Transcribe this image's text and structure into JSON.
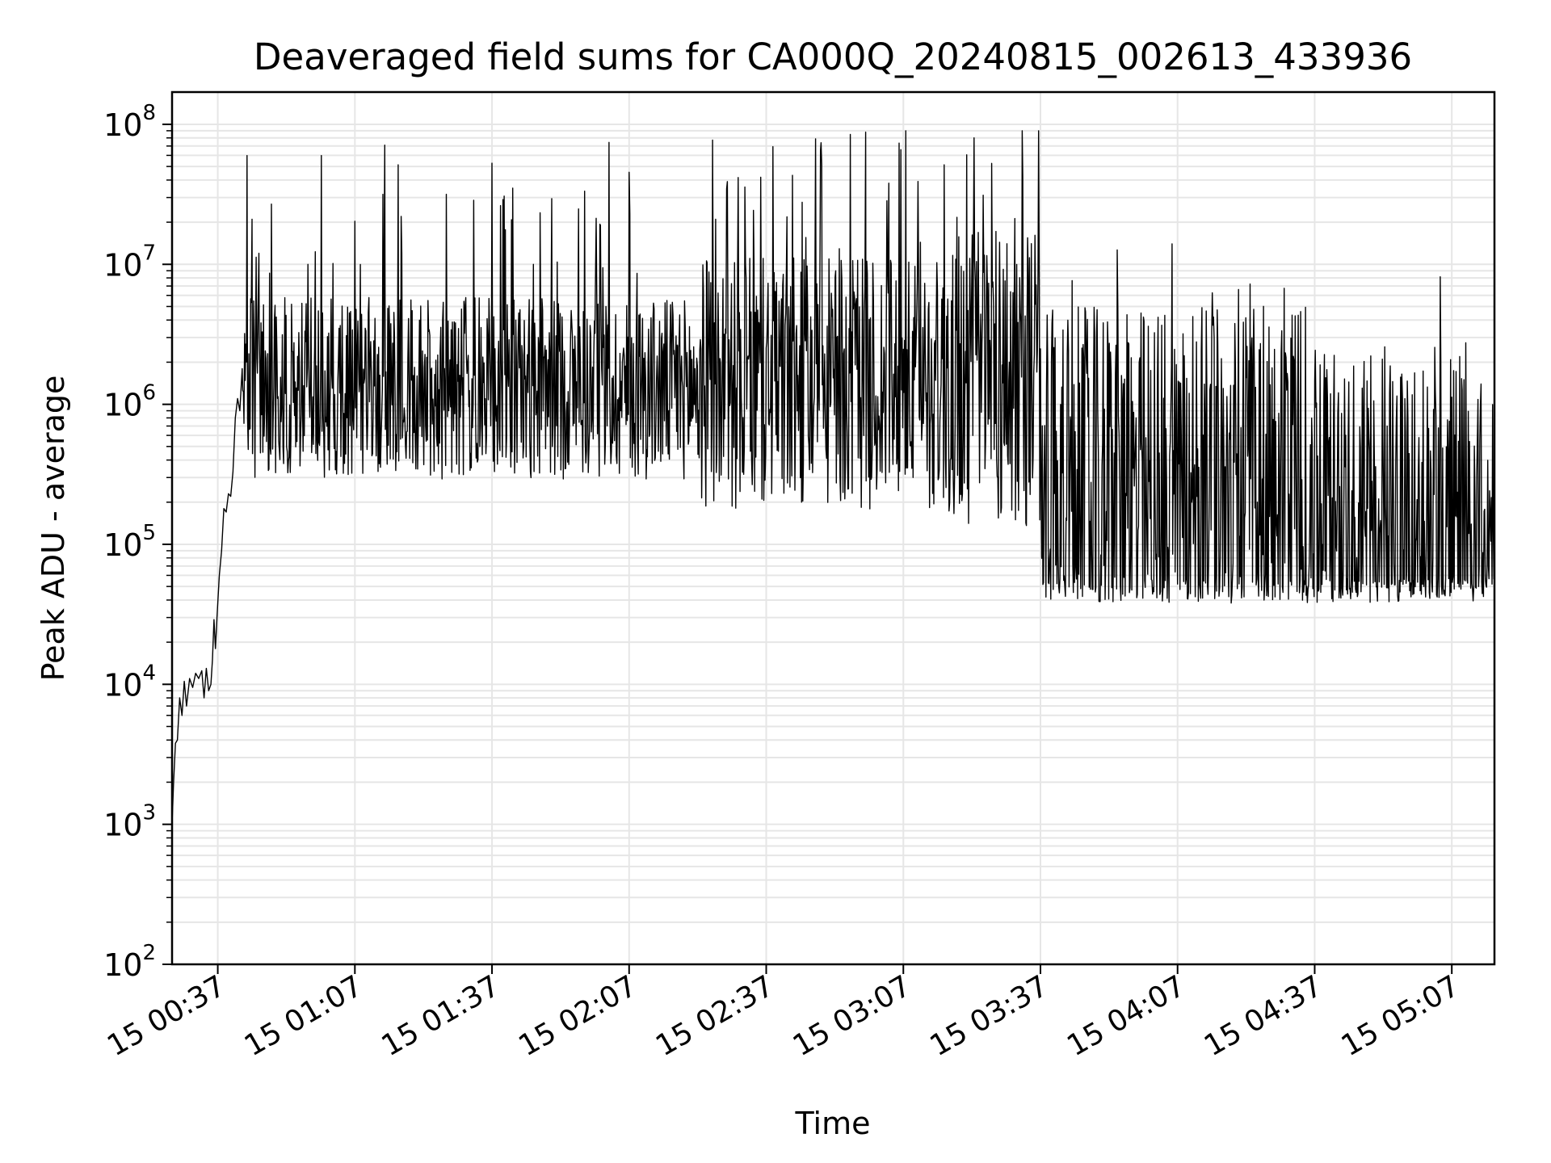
{
  "chart_data": {
    "type": "line",
    "title": "Deaveraged field sums for CA000Q_20240815_002613_433936",
    "xlabel": "Time",
    "ylabel": "Peak ADU - average",
    "y_scale": "log",
    "ylim": [
      100,
      170000000
    ],
    "xlim": [
      "2024-08-15 00:27:00",
      "2024-08-15 05:16:20"
    ],
    "grid": true,
    "grid_color": "#e6e6e6",
    "line_color": "#000000",
    "x_ticks": [
      {
        "t": "2024-08-15 00:37:00",
        "label": "15 00:37"
      },
      {
        "t": "2024-08-15 01:07:00",
        "label": "15 01:07"
      },
      {
        "t": "2024-08-15 01:37:00",
        "label": "15 01:37"
      },
      {
        "t": "2024-08-15 02:07:00",
        "label": "15 02:07"
      },
      {
        "t": "2024-08-15 02:37:00",
        "label": "15 02:37"
      },
      {
        "t": "2024-08-15 03:07:00",
        "label": "15 03:07"
      },
      {
        "t": "2024-08-15 03:37:00",
        "label": "15 03:37"
      },
      {
        "t": "2024-08-15 04:07:00",
        "label": "15 04:07"
      },
      {
        "t": "2024-08-15 04:37:00",
        "label": "15 04:37"
      },
      {
        "t": "2024-08-15 05:07:00",
        "label": "15 05:07"
      }
    ],
    "y_ticks": [
      {
        "value": 100,
        "base": "10",
        "exp": "2"
      },
      {
        "value": 1000,
        "base": "10",
        "exp": "3"
      },
      {
        "value": 10000,
        "base": "10",
        "exp": "4"
      },
      {
        "value": 100000,
        "base": "10",
        "exp": "5"
      },
      {
        "value": 1000000,
        "base": "10",
        "exp": "6"
      },
      {
        "value": 10000000,
        "base": "10",
        "exp": "7"
      },
      {
        "value": 100000000,
        "base": "10",
        "exp": "8"
      }
    ],
    "series": [
      {
        "points": [
          [
            "2024-08-15 00:27:00",
            1000
          ],
          [
            "2024-08-15 00:27:20",
            2000
          ],
          [
            "2024-08-15 00:27:45",
            3800
          ],
          [
            "2024-08-15 00:28:10",
            4000
          ],
          [
            "2024-08-15 00:28:40",
            8000
          ],
          [
            "2024-08-15 00:29:10",
            6000
          ],
          [
            "2024-08-15 00:29:40",
            10500
          ],
          [
            "2024-08-15 00:30:10",
            7000
          ],
          [
            "2024-08-15 00:30:50",
            11000
          ],
          [
            "2024-08-15 00:31:30",
            9500
          ],
          [
            "2024-08-15 00:32:10",
            12000
          ],
          [
            "2024-08-15 00:32:50",
            11000
          ],
          [
            "2024-08-15 00:33:30",
            12500
          ],
          [
            "2024-08-15 00:34:00",
            8000
          ],
          [
            "2024-08-15 00:34:30",
            13000
          ],
          [
            "2024-08-15 00:35:00",
            9000
          ],
          [
            "2024-08-15 00:35:30",
            10000
          ],
          [
            "2024-08-15 00:35:50",
            15000
          ],
          [
            "2024-08-15 00:36:10",
            29000
          ],
          [
            "2024-08-15 00:36:30",
            18000
          ],
          [
            "2024-08-15 00:36:50",
            30000
          ],
          [
            "2024-08-15 00:37:20",
            60000
          ],
          [
            "2024-08-15 00:37:50",
            90000
          ],
          [
            "2024-08-15 00:38:20",
            180000
          ],
          [
            "2024-08-15 00:38:50",
            170000
          ],
          [
            "2024-08-15 00:39:20",
            230000
          ],
          [
            "2024-08-15 00:39:50",
            220000
          ],
          [
            "2024-08-15 00:40:20",
            330000
          ],
          [
            "2024-08-15 00:40:50",
            800000
          ],
          [
            "2024-08-15 00:41:20",
            1100000
          ],
          [
            "2024-08-15 00:41:50",
            900000
          ],
          [
            "2024-08-15 00:42:20",
            1800000
          ]
        ]
      }
    ]
  }
}
